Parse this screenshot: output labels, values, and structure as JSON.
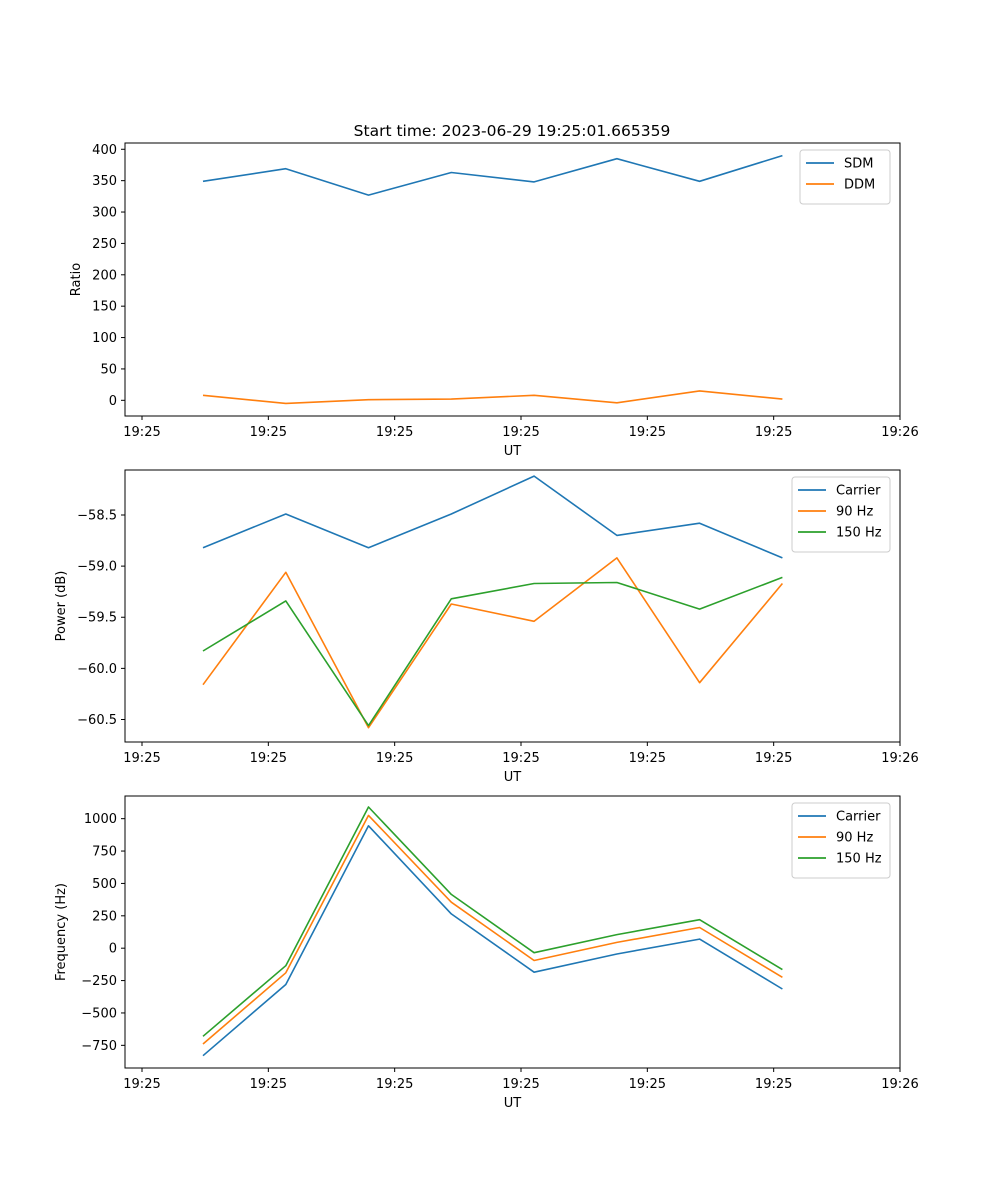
{
  "figure": {
    "title": "Start time: 2023-06-29 19:25:01.665359"
  },
  "chart_data": [
    {
      "type": "line",
      "ylabel": "Ratio",
      "xlabel": "UT",
      "x_ticks": [
        "19:25",
        "19:25",
        "19:25",
        "19:25",
        "19:25",
        "19:25",
        "19:25",
        "19:26"
      ],
      "ylim": [
        -25,
        410
      ],
      "y_ticks": [
        0,
        50,
        100,
        150,
        200,
        250,
        300,
        350,
        400
      ],
      "grid": false,
      "legend": "top-right",
      "series": [
        {
          "name": "SDM",
          "color": "#1f77b4",
          "values": [
            349,
            369,
            327,
            363,
            348,
            385,
            349,
            390
          ]
        },
        {
          "name": "DDM",
          "color": "#ff7f0e",
          "values": [
            8,
            -5,
            1,
            2,
            8,
            -4,
            15,
            2
          ]
        }
      ]
    },
    {
      "type": "line",
      "ylabel": "Power (dB)",
      "xlabel": "UT",
      "x_ticks": [
        "19:25",
        "19:25",
        "19:25",
        "19:25",
        "19:25",
        "19:25",
        "19:25",
        "19:26"
      ],
      "ylim": [
        -60.72,
        -58.06
      ],
      "y_ticks": [
        -58.5,
        -59.0,
        -59.5,
        -60.0,
        -60.5
      ],
      "y_tick_labels": [
        "−58.5",
        "−59.0",
        "−59.5",
        "−60.0",
        "−60.5"
      ],
      "grid": false,
      "legend": "top-right",
      "series": [
        {
          "name": "Carrier",
          "color": "#1f77b4",
          "values": [
            -58.82,
            -58.49,
            -58.82,
            -58.49,
            -58.12,
            -58.7,
            -58.58,
            -58.92
          ]
        },
        {
          "name": "90 Hz",
          "color": "#ff7f0e",
          "values": [
            -60.16,
            -59.06,
            -60.58,
            -59.37,
            -59.54,
            -58.92,
            -60.14,
            -59.17
          ]
        },
        {
          "name": "150 Hz",
          "color": "#2ca02c",
          "values": [
            -59.83,
            -59.34,
            -60.56,
            -59.32,
            -59.17,
            -59.16,
            -59.42,
            -59.11
          ]
        }
      ]
    },
    {
      "type": "line",
      "ylabel": "Frequency (Hz)",
      "xlabel": "UT",
      "x_ticks": [
        "19:25",
        "19:25",
        "19:25",
        "19:25",
        "19:25",
        "19:25",
        "19:25",
        "19:26"
      ],
      "ylim": [
        -925,
        1175
      ],
      "y_ticks": [
        1000,
        750,
        500,
        250,
        0,
        -250,
        -500,
        -750
      ],
      "y_tick_labels": [
        "1000",
        "750",
        "500",
        "250",
        "0",
        "−250",
        "−500",
        "−750"
      ],
      "grid": false,
      "legend": "top-right",
      "series": [
        {
          "name": "Carrier",
          "color": "#1f77b4",
          "values": [
            -830,
            -280,
            945,
            265,
            -185,
            -45,
            70,
            -315
          ]
        },
        {
          "name": "90 Hz",
          "color": "#ff7f0e",
          "values": [
            -740,
            -190,
            1025,
            355,
            -95,
            45,
            160,
            -225
          ]
        },
        {
          "name": "150 Hz",
          "color": "#2ca02c",
          "values": [
            -680,
            -135,
            1090,
            415,
            -35,
            105,
            220,
            -165
          ]
        }
      ]
    }
  ]
}
